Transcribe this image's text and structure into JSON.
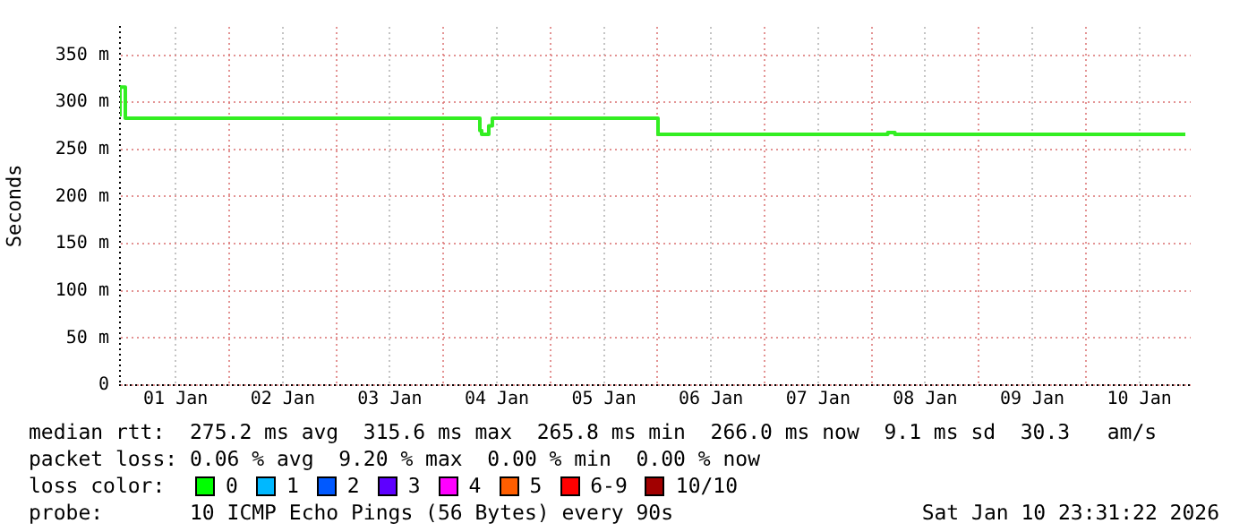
{
  "chart_data": {
    "type": "step",
    "ylabel": "Seconds",
    "x": [
      "2025-12-31T23:31",
      "2025-12-31T23:55",
      "2026-01-01T00:43",
      "2026-01-01T01:07",
      "2026-01-04T08:11",
      "2026-01-04T08:35",
      "2026-01-04T09:23",
      "2026-01-04T10:11",
      "2026-01-04T10:59",
      "2026-01-04T11:23",
      "2026-01-06T00:07",
      "2026-01-06T00:31",
      "2026-01-08T03:37",
      "2026-01-08T04:01",
      "2026-01-08T05:13",
      "2026-01-08T05:37",
      "2026-01-10T22:19"
    ],
    "series": [
      {
        "color": "#33ee22",
        "values": [
          285,
          316,
          316,
          283,
          283,
          270,
          266,
          266,
          275,
          283,
          283,
          266,
          266,
          268,
          268,
          266,
          266
        ]
      }
    ],
    "xlim": [
      "2025-12-31T23:31",
      "2026-01-10T23:31"
    ],
    "xticks": [
      {
        "value": "2026-01-01T12:00",
        "label": "01 Jan"
      },
      {
        "value": "2026-01-02T00:00",
        "label": null
      },
      {
        "value": "2026-01-02T12:00",
        "label": "02 Jan"
      },
      {
        "value": "2026-01-03T00:00",
        "label": null
      },
      {
        "value": "2026-01-03T12:00",
        "label": "03 Jan"
      },
      {
        "value": "2026-01-04T00:00",
        "label": null
      },
      {
        "value": "2026-01-04T12:00",
        "label": "04 Jan"
      },
      {
        "value": "2026-01-05T00:00",
        "label": null
      },
      {
        "value": "2026-01-05T12:00",
        "label": "05 Jan"
      },
      {
        "value": "2026-01-06T00:00",
        "label": null
      },
      {
        "value": "2026-01-06T12:00",
        "label": "06 Jan"
      },
      {
        "value": "2026-01-07T00:00",
        "label": null
      },
      {
        "value": "2026-01-07T12:00",
        "label": "07 Jan"
      },
      {
        "value": "2026-01-08T00:00",
        "label": null
      },
      {
        "value": "2026-01-08T12:00",
        "label": "08 Jan"
      },
      {
        "value": "2026-01-09T00:00",
        "label": null
      },
      {
        "value": "2026-01-09T12:00",
        "label": "09 Jan"
      },
      {
        "value": "2026-01-10T00:00",
        "label": null
      },
      {
        "value": "2026-01-10T12:00",
        "label": "10 Jan"
      }
    ],
    "ylim": [
      0,
      380
    ],
    "yticks": [
      {
        "value": 0,
        "label": "0"
      },
      {
        "value": 50,
        "label": "50 m"
      },
      {
        "value": 100,
        "label": "100 m"
      },
      {
        "value": 150,
        "label": "150 m"
      },
      {
        "value": 200,
        "label": "200 m"
      },
      {
        "value": 250,
        "label": "250 m"
      },
      {
        "value": 300,
        "label": "300 m"
      },
      {
        "value": 350,
        "label": "350 m"
      }
    ],
    "grid": true,
    "annotations": [
      "median rtt:  275.2 ms avg  315.6 ms max  265.8 ms min  266.0 ms now  9.1 ms sd  30.3   am/s",
      "packet loss: 0.06 % avg  9.20 % max  0.00 % min  0.00 % now",
      "loss color:",
      "0",
      "1",
      "2",
      "3",
      "4",
      "5",
      "6-9",
      "10/10",
      "probe:       10 ICMP Echo Pings (56 Bytes) every 90s",
      "Sat Jan 10 23:31:22 2026"
    ]
  }
}
